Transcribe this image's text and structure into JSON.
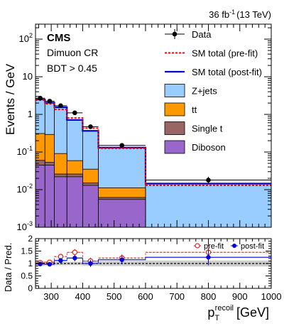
{
  "chart_data": [
    {
      "panel": "main",
      "type": "stacked-step-histogram",
      "lumi_label": "36 fb",
      "lumi_sup": "-1",
      "energy_label": "(13 TeV)",
      "experiment": "CMS",
      "region": "Dimuon CR",
      "selection": "BDT > 0.45",
      "ylabel": "Events / GeV",
      "yscale": "log",
      "ylim": [
        0.001,
        250
      ],
      "xlim": [
        250,
        1000
      ],
      "x_tick_labels": [
        "300",
        "400",
        "500",
        "600",
        "700",
        "800",
        "900",
        "1000"
      ],
      "y_tick_labels": [
        {
          "base": "10",
          "exp": "-3",
          "value": 0.001
        },
        {
          "base": "10",
          "exp": "-2",
          "value": 0.01
        },
        {
          "base": "10",
          "exp": "-1",
          "value": 0.1
        },
        {
          "base": "1",
          "exp": "",
          "value": 1
        },
        {
          "base": "10",
          "exp": "",
          "value": 10
        },
        {
          "base": "10",
          "exp": "2",
          "value": 100
        }
      ],
      "bin_edges": [
        250,
        280,
        310,
        350,
        400,
        450,
        600,
        1000
      ],
      "stack": [
        {
          "name": "Diboson",
          "color": "#9966cc",
          "values": [
            0.045,
            0.045,
            0.022,
            0.022,
            0.013,
            0.0055,
            0.0
          ]
        },
        {
          "name": "Single t",
          "color": "#996666",
          "values": [
            0.015,
            0.008,
            0.004,
            0.004,
            0.002,
            0.0007,
            0.0
          ]
        },
        {
          "name": "tt",
          "color": "#ff9900",
          "values": [
            0.25,
            0.24,
            0.065,
            0.033,
            0.02,
            0.005,
            0.0
          ]
        },
        {
          "name": "Z+jets",
          "color": "#99ccff",
          "values": [
            2.19,
            1.75,
            1.45,
            0.65,
            0.33,
            0.12,
            0.0145
          ]
        }
      ],
      "prefit_total": {
        "name": "SM total (pre-fit)",
        "color": "#ff0000",
        "values": [
          2.4,
          1.9,
          1.35,
          0.8,
          0.43,
          0.125,
          0.013
        ]
      },
      "postfit_total": {
        "name": "SM total (post-fit)",
        "color": "#0000cc",
        "values": [
          2.5,
          2.05,
          1.55,
          0.71,
          0.365,
          0.131,
          0.0145
        ]
      },
      "data": {
        "name": "Data",
        "x": [
          265,
          295,
          330,
          375,
          425,
          525,
          800
        ],
        "y": [
          2.7,
          2.25,
          1.7,
          1.1,
          0.47,
          0.15,
          0.018
        ],
        "yerr": [
          0.18,
          0.16,
          0.13,
          0.09,
          0.06,
          0.018,
          0.004
        ],
        "xerr": [
          15,
          15,
          20,
          25,
          25,
          75,
          200
        ]
      },
      "legend": [
        {
          "label": "Data",
          "kind": "marker"
        },
        {
          "label": "SM total (pre-fit)",
          "kind": "dashed-line"
        },
        {
          "label": "SM total (post-fit)",
          "kind": "line"
        },
        {
          "label": "Z+jets",
          "kind": "box"
        },
        {
          "label": "tt",
          "kind": "box"
        },
        {
          "label": "Single t",
          "kind": "box"
        },
        {
          "label": "Diboson",
          "kind": "box"
        }
      ],
      "legend_position": "top-right"
    },
    {
      "panel": "ratio",
      "type": "ratio-scatter",
      "ylabel": "Data / Pred.",
      "xlabel": "p",
      "xlabel_sub": "T",
      "xlabel_sup": "recoil",
      "xlabel_unit": "[GeV]",
      "ylim": [
        0,
        2
      ],
      "xlim": [
        250,
        1000
      ],
      "y_tick_labels": [
        "0",
        "0.5",
        "1",
        "1.5",
        "2"
      ],
      "x_tick_labels": [
        "300",
        "400",
        "500",
        "600",
        "700",
        "800",
        "900",
        "1000"
      ],
      "uncertainty_band": {
        "low": [
          0.9,
          0.92,
          0.93,
          0.93,
          0.91,
          0.9,
          0.88
        ],
        "high": [
          1.1,
          1.08,
          1.07,
          1.07,
          1.09,
          1.1,
          1.12
        ]
      },
      "series": [
        {
          "name": "pre-fit",
          "color": "#dd2222",
          "marker": "open-circle",
          "x": [
            265,
            295,
            330,
            375,
            425,
            525,
            800
          ],
          "y": [
            1.03,
            1.05,
            1.28,
            1.45,
            1.1,
            1.22,
            1.45
          ],
          "yerr": [
            0.08,
            0.08,
            0.1,
            0.13,
            0.14,
            0.15,
            0.32
          ]
        },
        {
          "name": "post-fit",
          "color": "#0000dd",
          "marker": "filled-circle",
          "x": [
            265,
            295,
            330,
            375,
            425,
            525,
            800
          ],
          "y": [
            0.98,
            0.97,
            1.12,
            1.22,
            1.0,
            1.15,
            1.25
          ],
          "yerr": [
            0.08,
            0.08,
            0.1,
            0.13,
            0.14,
            0.15,
            0.32
          ]
        }
      ],
      "legend_position": "top-right"
    }
  ]
}
